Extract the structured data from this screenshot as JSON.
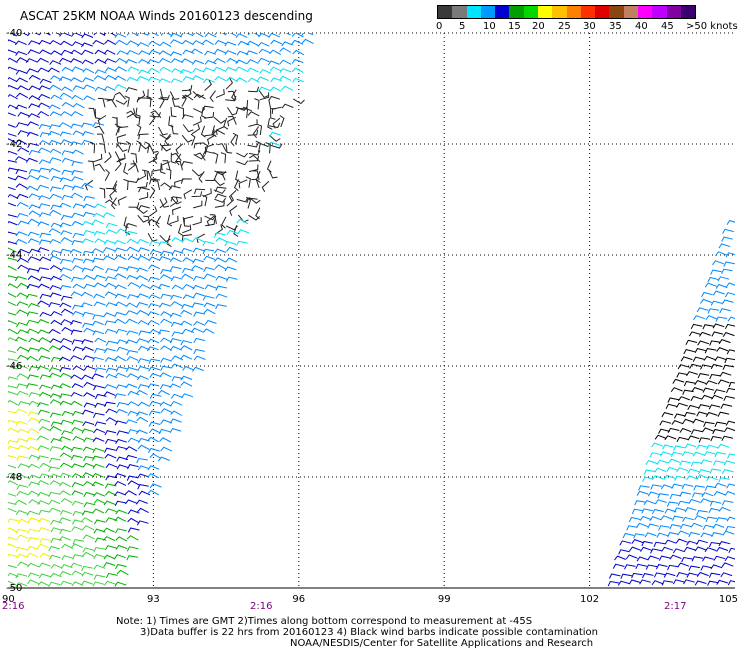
{
  "title": "ASCAT 25KM NOAA Winds 20160123 descending",
  "colorbar": {
    "labels": [
      "0",
      "5",
      "10",
      "15",
      "20",
      "25",
      "30",
      "35",
      "40",
      "45",
      ">50 knots"
    ],
    "colors": [
      "#3a3a3a",
      "#7a7a7a",
      "#00e5ff",
      "#0099ff",
      "#0000d0",
      "#00a000",
      "#00d800",
      "#ffff00",
      "#ffc000",
      "#ff8000",
      "#ff3000",
      "#e00000",
      "#8b4513",
      "#c08060",
      "#ff00ff",
      "#c000ff",
      "#8000a0",
      "#3a0070"
    ]
  },
  "axes": {
    "lon_ticks": [
      "90",
      "93",
      "96",
      "99",
      "102",
      "105"
    ],
    "lat_ticks": [
      "-40",
      "-42",
      "-44",
      "-46",
      "-48",
      "-50"
    ]
  },
  "times": [
    "2:16",
    "2:16",
    "2:17"
  ],
  "notes": {
    "line1": "Note: 1) Times are GMT 2)Times along bottom correspond to measurement at -45S",
    "line2": "3)Data buffer is 22 hrs from 20160123 4) Black wind barbs indicate possible contamination",
    "line3": "NOAA/NESDIS/Center for Satellite Applications and Research"
  },
  "map_regions": {
    "palette": {
      "low": "#222222",
      "light_blue": "#00e0f0",
      "mid_blue": "#0088ff",
      "dark_blue": "#0000cc",
      "green": "#00b000",
      "light_green": "#40d040",
      "yellow": "#f0f000",
      "contaminated": "#000000"
    },
    "swaths": [
      {
        "name": "left swath",
        "extent_lon": [
          90,
          95.8
        ],
        "extent_lat": [
          -40,
          -50
        ]
      },
      {
        "name": "right swath",
        "extent_lon": [
          102.6,
          105
        ],
        "extent_lat": [
          -43.5,
          -50
        ]
      }
    ]
  }
}
